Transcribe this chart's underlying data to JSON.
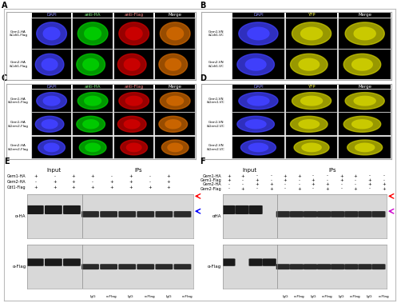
{
  "fig_width": 5.0,
  "fig_height": 3.73,
  "dpi": 100,
  "bg_color": "#ffffff",
  "border_color": "#cccccc",
  "panel_labels": [
    "A",
    "B",
    "C",
    "D",
    "E",
    "F"
  ],
  "panel_label_fontsize": 7,
  "panel_label_weight": "bold",
  "section_E": {
    "title_input": "Input",
    "title_IPs": "IPs",
    "rows": [
      "Gem1-HA",
      "Gem2-HA",
      "Cdt1-Flag"
    ],
    "input_cols": 3,
    "IPs_cols": 6,
    "input_vals": [
      [
        "+",
        "-",
        "+"
      ],
      [
        "-",
        "+",
        "+"
      ],
      [
        "+",
        "+",
        "+"
      ]
    ],
    "IPs_vals": [
      [
        "+",
        "-",
        "+"
      ],
      [
        "-",
        "+",
        "+"
      ],
      [
        "+",
        "+",
        "+"
      ]
    ],
    "antibodies": [
      "α-HA",
      "α-Flag"
    ],
    "ip_labels": [
      "IgG",
      "α-Flag",
      "IgG",
      "α-Flag",
      "IgG",
      "α-Flag"
    ],
    "arrow_colors": [
      "#ff0000",
      "#0000ff",
      "#cc00cc"
    ],
    "blot_bg": "#e8e8e8",
    "band_color": "#222222"
  },
  "section_F": {
    "title_input": "Input",
    "title_IPs": "IPs",
    "rows": [
      "Gem1-HA",
      "Gem1-Flag",
      "Gem2-HA",
      "Gem2-Flag"
    ],
    "input_cols": 4,
    "IPs_cols": 8,
    "input_vals": [
      [
        "+",
        "+",
        "-",
        "-"
      ],
      [
        "+",
        "-",
        "+",
        "-"
      ],
      [
        "-",
        "-",
        "+",
        "+"
      ],
      [
        "-",
        "+",
        "-",
        "+"
      ]
    ],
    "IPs_vals": [
      [
        "+",
        "+",
        "-",
        "-"
      ],
      [
        "+",
        "-",
        "+",
        "-"
      ],
      [
        "-",
        "-",
        "+",
        "+"
      ],
      [
        "-",
        "+",
        "-",
        "+"
      ]
    ],
    "antibodies": [
      "αHA",
      "α-Flag"
    ],
    "ip_labels": [
      "IgG",
      "α-Flag",
      "IgG",
      "α-Flag",
      "IgG",
      "α-Flag",
      "IgG",
      "α-Flag"
    ],
    "arrow_colors_ha": [
      "#ff0000",
      "#cc00cc"
    ],
    "arrow_colors_flag": [
      "#00aaaa",
      "#cc00cc"
    ],
    "blot_bg": "#e8e8e8",
    "band_color": "#222222"
  },
  "microscopy": {
    "cell_colors_A": [
      [
        "#4040ff",
        "#00cc00",
        "#cc0000",
        "#cc6600"
      ],
      [
        "#4040ff",
        "#00cc00",
        "#cc0000",
        "#cc6600"
      ]
    ],
    "col_labels_A": [
      "DAPI",
      "anti-HA",
      "anti-Flag",
      "Merge"
    ],
    "row_labels_A": [
      "Gem1-HA\n&Cdt1-Flag",
      "Gem2-HA\n&Cdt1-Flag"
    ],
    "cell_colors_B": [
      [
        "#4040ff",
        "#cccc00",
        "#cccc00"
      ],
      [
        "#4040ff",
        "#cccc00",
        "#cccc00"
      ]
    ],
    "col_labels_B": [
      "DAPI",
      "YFP",
      "Merge"
    ],
    "row_labels_B": [
      "Gem1-VN\n&Cdt1-VC",
      "Gem2-VN\n&Cdt1-VC"
    ],
    "cell_colors_C": [
      [
        "#4040ff",
        "#00cc00",
        "#cc0000",
        "#cc6600"
      ],
      [
        "#4040ff",
        "#00cc00",
        "#cc0000",
        "#cc6600"
      ],
      [
        "#4040ff",
        "#00cc00",
        "#cc0000",
        "#cc6600"
      ]
    ],
    "col_labels_C": [
      "DAPI",
      "anti-HA",
      "anti-Flag",
      "Merge"
    ],
    "row_labels_C": [
      "Gem1-HA\n&Gem1-Flag",
      "Gem1-HA\n&Gem2-Flag",
      "Gem2-HA\n&Gem2-Flag"
    ],
    "cell_colors_D": [
      [
        "#4040ff",
        "#cccc00",
        "#cccc00"
      ],
      [
        "#4040ff",
        "#cccc00",
        "#cccc00"
      ],
      [
        "#4040ff",
        "#cccc00",
        "#cccc00"
      ]
    ],
    "col_labels_D": [
      "DAPI",
      "YFP",
      "Merge"
    ],
    "row_labels_D": [
      "Gem1-VN\n&Gem1-VC",
      "Gem1-VN\n&Gem2-VC",
      "Gem2-VN\n&Gem2-VC"
    ]
  }
}
